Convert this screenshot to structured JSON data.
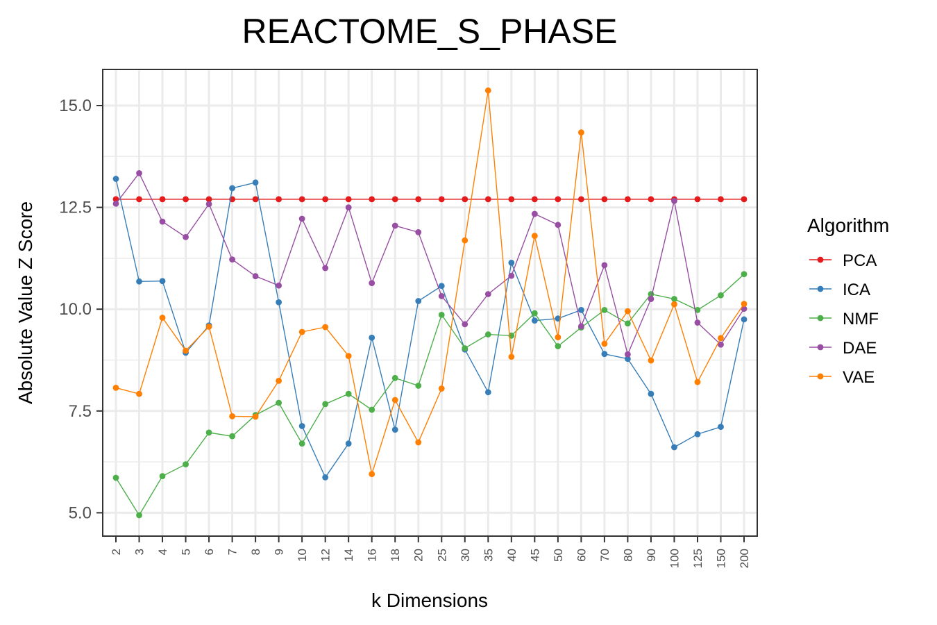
{
  "chart_data": {
    "type": "line",
    "title": "REACTOME_S_PHASE",
    "xlabel": "k Dimensions",
    "ylabel": "Absolute Value Z Score",
    "ylim": [
      4.4,
      16.0
    ],
    "yticks": [
      5.0,
      7.5,
      10.0,
      12.5,
      15.0
    ],
    "ytick_labels": [
      "5.0",
      "7.5",
      "10.0",
      "12.5",
      "15.0"
    ],
    "categories": [
      "2",
      "3",
      "4",
      "5",
      "6",
      "7",
      "8",
      "9",
      "10",
      "12",
      "14",
      "16",
      "18",
      "20",
      "25",
      "30",
      "35",
      "40",
      "45",
      "50",
      "60",
      "70",
      "80",
      "90",
      "100",
      "125",
      "150",
      "200"
    ],
    "grid": true,
    "legend_title": "Algorithm",
    "legend_position": "right",
    "series": [
      {
        "name": "PCA",
        "color": "#e41a1c",
        "values": [
          12.7,
          12.7,
          12.7,
          12.7,
          12.7,
          12.7,
          12.7,
          12.7,
          12.7,
          12.7,
          12.7,
          12.7,
          12.7,
          12.7,
          12.7,
          12.7,
          12.7,
          12.7,
          12.7,
          12.7,
          12.7,
          12.7,
          12.7,
          12.7,
          12.7,
          12.7,
          12.7,
          12.7
        ]
      },
      {
        "name": "ICA",
        "color": "#377eb8",
        "values": [
          13.2,
          10.68,
          10.69,
          8.93,
          9.6,
          12.97,
          13.11,
          10.17,
          7.13,
          5.87,
          6.7,
          9.3,
          7.04,
          10.2,
          10.57,
          9.01,
          7.96,
          11.14,
          9.72,
          9.77,
          9.98,
          8.9,
          8.78,
          7.92,
          6.61,
          6.93,
          7.11,
          9.75
        ]
      },
      {
        "name": "NMF",
        "color": "#4daf4a",
        "values": [
          5.86,
          4.94,
          5.9,
          6.19,
          6.97,
          6.88,
          7.4,
          7.7,
          6.7,
          7.67,
          7.92,
          7.53,
          8.31,
          8.12,
          9.86,
          9.04,
          9.38,
          9.35,
          9.9,
          9.09,
          9.55,
          9.98,
          9.65,
          10.37,
          10.25,
          9.98,
          10.34,
          10.86
        ]
      },
      {
        "name": "DAE",
        "color": "#984ea3",
        "values": [
          12.59,
          13.34,
          12.15,
          11.77,
          12.58,
          11.22,
          10.81,
          10.58,
          12.22,
          11.01,
          12.5,
          10.64,
          12.05,
          11.89,
          10.32,
          9.63,
          10.37,
          10.82,
          12.34,
          12.07,
          9.58,
          11.08,
          8.89,
          10.25,
          12.66,
          9.67,
          9.13,
          10.01
        ]
      },
      {
        "name": "VAE",
        "color": "#ff7f00",
        "values": [
          8.07,
          7.92,
          9.79,
          8.98,
          9.57,
          7.37,
          7.36,
          8.24,
          9.44,
          9.56,
          8.85,
          5.95,
          7.77,
          6.73,
          8.05,
          11.69,
          15.37,
          8.83,
          11.8,
          9.31,
          14.34,
          9.15,
          9.95,
          8.74,
          10.12,
          8.21,
          9.29,
          10.13
        ]
      }
    ]
  }
}
